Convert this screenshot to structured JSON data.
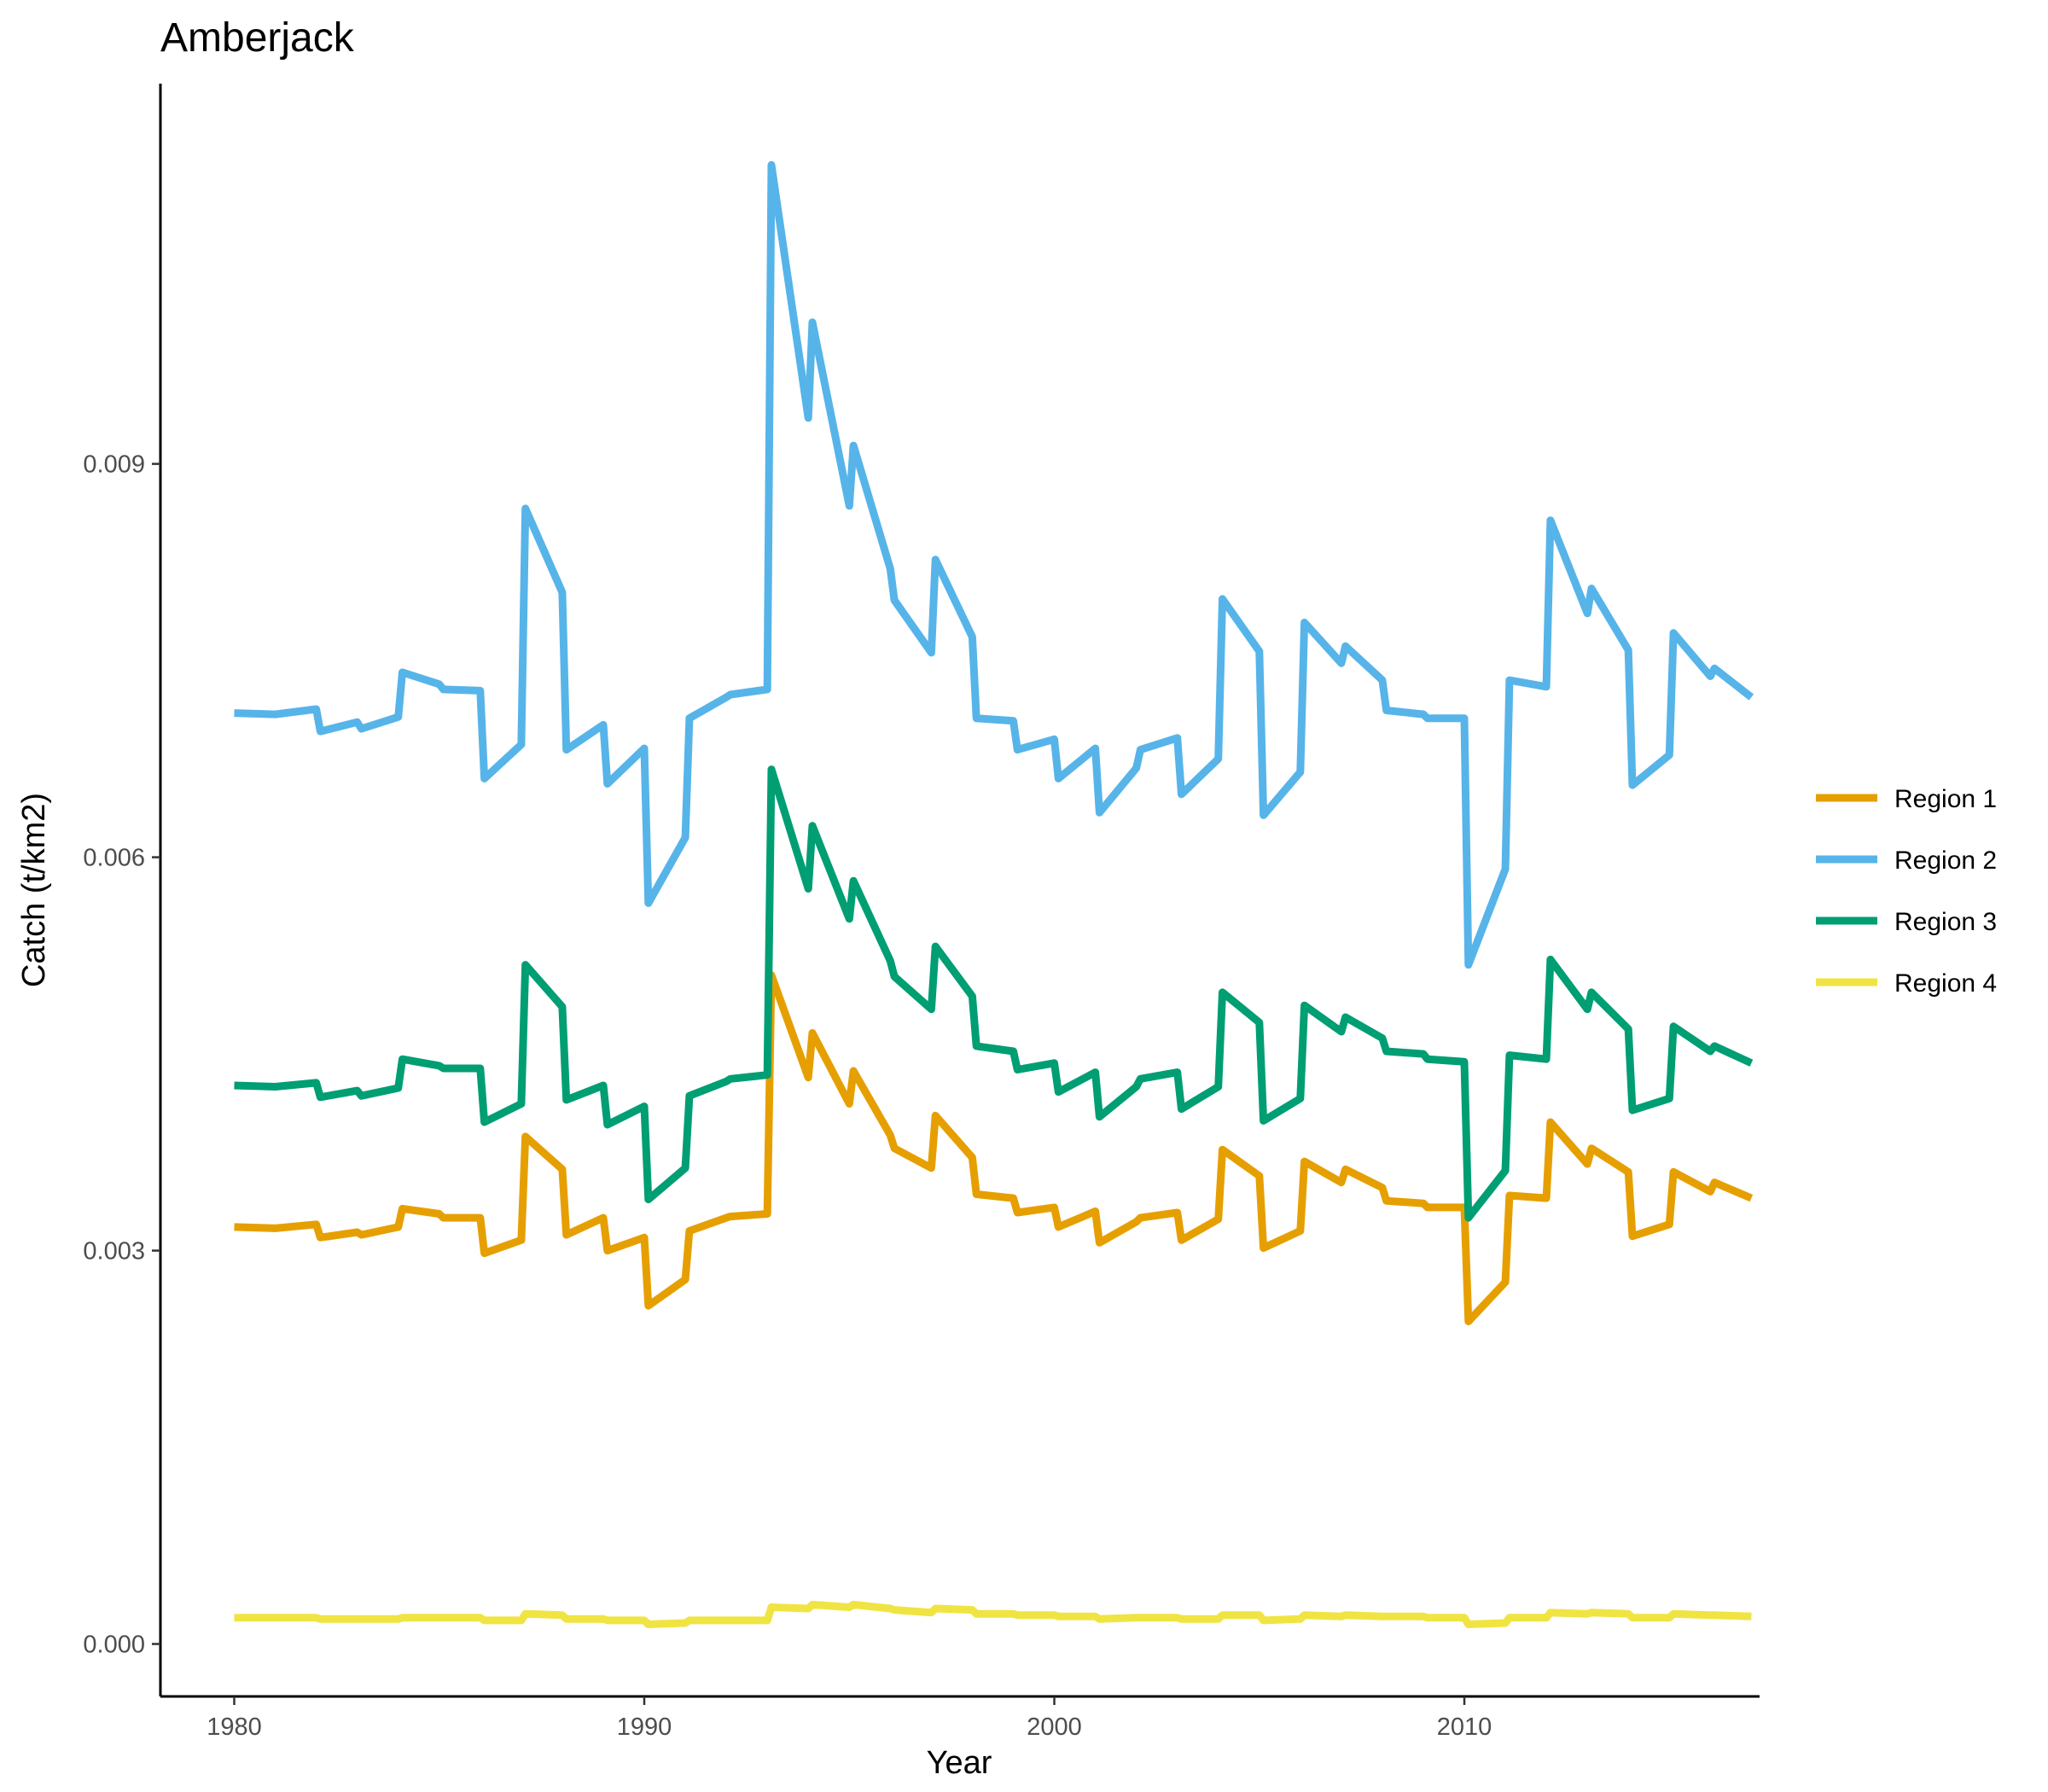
{
  "chart_data": {
    "type": "line",
    "title": "Amberjack",
    "xlabel": "Year",
    "ylabel": "Catch (t/km2)",
    "xlim": [
      1978.2,
      2017.2
    ],
    "ylim": [
      -0.0004,
      0.0119
    ],
    "x_ticks": [
      1980,
      1990,
      2000,
      2010
    ],
    "x_tick_labels": [
      "1980",
      "1990",
      "2000",
      "2010"
    ],
    "y_ticks": [
      0.0,
      0.003,
      0.006,
      0.009
    ],
    "y_tick_labels": [
      "0.000",
      "0.003",
      "0.006",
      "0.009"
    ],
    "grid": false,
    "legend_position": "right",
    "series": [
      {
        "name": "Region 1",
        "color": "#E69F00",
        "x": [
          1980.0,
          1981.0,
          1982.0,
          1982.1,
          1983.0,
          1983.1,
          1984.0,
          1984.1,
          1985.0,
          1985.1,
          1986.0,
          1986.1,
          1987.0,
          1987.1,
          1988.0,
          1988.1,
          1989.0,
          1989.1,
          1990.0,
          1990.1,
          1991.0,
          1991.1,
          1992.0,
          1992.1,
          1993.0,
          1993.1,
          1994.0,
          1994.1,
          1995.0,
          1995.1,
          1996.0,
          1996.1,
          1997.0,
          1997.1,
          1998.0,
          1998.1,
          1999.0,
          1999.1,
          2000.0,
          2000.1,
          2001.0,
          2001.1,
          2002.0,
          2002.1,
          2003.0,
          2003.1,
          2004.0,
          2004.1,
          2005.0,
          2005.1,
          2006.0,
          2006.1,
          2007.0,
          2007.1,
          2008.0,
          2008.1,
          2009.0,
          2009.1,
          2010.0,
          2010.1,
          2011.0,
          2011.1,
          2012.0,
          2012.1,
          2013.0,
          2013.1,
          2014.0,
          2014.1,
          2015.0,
          2015.1,
          2016.0,
          2016.1,
          2017.0
        ],
        "y": [
          0.00318,
          0.00317,
          0.0032,
          0.0031,
          0.00314,
          0.00312,
          0.00318,
          0.00332,
          0.00328,
          0.00325,
          0.00325,
          0.00298,
          0.00308,
          0.00387,
          0.00362,
          0.00312,
          0.00325,
          0.003,
          0.0031,
          0.00258,
          0.00278,
          0.00315,
          0.00325,
          0.00326,
          0.00328,
          0.0051,
          0.00432,
          0.00466,
          0.00412,
          0.00437,
          0.00388,
          0.00378,
          0.00363,
          0.00403,
          0.00371,
          0.00343,
          0.0034,
          0.00329,
          0.00333,
          0.00318,
          0.0033,
          0.00306,
          0.00322,
          0.00325,
          0.00329,
          0.00308,
          0.00324,
          0.00377,
          0.00357,
          0.00302,
          0.00315,
          0.00368,
          0.00352,
          0.00362,
          0.00348,
          0.00338,
          0.00336,
          0.00333,
          0.00333,
          0.00246,
          0.00276,
          0.00342,
          0.0034,
          0.00398,
          0.00366,
          0.00378,
          0.0036,
          0.00311,
          0.0032,
          0.0036,
          0.00345,
          0.00352,
          0.0034
        ]
      },
      {
        "name": "Region 2",
        "color": "#56B4E9",
        "x": [
          1980.0,
          1981.0,
          1982.0,
          1982.1,
          1983.0,
          1983.1,
          1984.0,
          1984.1,
          1985.0,
          1985.1,
          1986.0,
          1986.1,
          1987.0,
          1987.1,
          1988.0,
          1988.1,
          1989.0,
          1989.1,
          1990.0,
          1990.1,
          1991.0,
          1991.1,
          1992.0,
          1992.1,
          1993.0,
          1993.1,
          1994.0,
          1994.1,
          1995.0,
          1995.1,
          1996.0,
          1996.1,
          1997.0,
          1997.1,
          1998.0,
          1998.1,
          1999.0,
          1999.1,
          2000.0,
          2000.1,
          2001.0,
          2001.1,
          2002.0,
          2002.1,
          2003.0,
          2003.1,
          2004.0,
          2004.1,
          2005.0,
          2005.1,
          2006.0,
          2006.1,
          2007.0,
          2007.1,
          2008.0,
          2008.1,
          2009.0,
          2009.1,
          2010.0,
          2010.1,
          2011.0,
          2011.1,
          2012.0,
          2012.1,
          2013.0,
          2013.1,
          2014.0,
          2014.1,
          2015.0,
          2015.1,
          2016.0,
          2016.1,
          2017.0
        ],
        "y": [
          0.0071,
          0.00709,
          0.00713,
          0.00696,
          0.00703,
          0.00698,
          0.00707,
          0.00741,
          0.00732,
          0.00728,
          0.00727,
          0.0066,
          0.00686,
          0.00866,
          0.00802,
          0.00682,
          0.00701,
          0.00656,
          0.00683,
          0.00565,
          0.00615,
          0.00706,
          0.00722,
          0.00724,
          0.00728,
          0.01128,
          0.00935,
          0.01008,
          0.00868,
          0.00914,
          0.0082,
          0.00796,
          0.00756,
          0.00827,
          0.00768,
          0.00706,
          0.00704,
          0.00682,
          0.0069,
          0.0066,
          0.00683,
          0.00634,
          0.00668,
          0.00682,
          0.00691,
          0.00648,
          0.00675,
          0.00797,
          0.00757,
          0.00632,
          0.00665,
          0.00779,
          0.00748,
          0.00761,
          0.00735,
          0.00712,
          0.00709,
          0.00706,
          0.00706,
          0.00518,
          0.00591,
          0.00735,
          0.0073,
          0.00857,
          0.00786,
          0.00805,
          0.00758,
          0.00655,
          0.00678,
          0.00771,
          0.00738,
          0.00744,
          0.00722
        ]
      },
      {
        "name": "Region 3",
        "color": "#009E73",
        "x": [
          1980.0,
          1981.0,
          1982.0,
          1982.1,
          1983.0,
          1983.1,
          1984.0,
          1984.1,
          1985.0,
          1985.1,
          1986.0,
          1986.1,
          1987.0,
          1987.1,
          1988.0,
          1988.1,
          1989.0,
          1989.1,
          1990.0,
          1990.1,
          1991.0,
          1991.1,
          1992.0,
          1992.1,
          1993.0,
          1993.1,
          1994.0,
          1994.1,
          1995.0,
          1995.1,
          1996.0,
          1996.1,
          1997.0,
          1997.1,
          1998.0,
          1998.1,
          1999.0,
          1999.1,
          2000.0,
          2000.1,
          2001.0,
          2001.1,
          2002.0,
          2002.1,
          2003.0,
          2003.1,
          2004.0,
          2004.1,
          2005.0,
          2005.1,
          2006.0,
          2006.1,
          2007.0,
          2007.1,
          2008.0,
          2008.1,
          2009.0,
          2009.1,
          2010.0,
          2010.1,
          2011.0,
          2011.1,
          2012.0,
          2012.1,
          2013.0,
          2013.1,
          2014.0,
          2014.1,
          2015.0,
          2015.1,
          2016.0,
          2016.1,
          2017.0
        ],
        "y": [
          0.00426,
          0.00425,
          0.00428,
          0.00417,
          0.00422,
          0.00418,
          0.00424,
          0.00446,
          0.00441,
          0.00439,
          0.00439,
          0.00398,
          0.00412,
          0.00518,
          0.00486,
          0.00415,
          0.00426,
          0.00396,
          0.0041,
          0.00339,
          0.00363,
          0.00418,
          0.00429,
          0.00431,
          0.00434,
          0.00667,
          0.00576,
          0.00624,
          0.00553,
          0.00582,
          0.00521,
          0.00509,
          0.00484,
          0.00532,
          0.00494,
          0.00456,
          0.00452,
          0.00438,
          0.00443,
          0.00421,
          0.00436,
          0.00402,
          0.00425,
          0.00431,
          0.00436,
          0.00408,
          0.00425,
          0.00497,
          0.00474,
          0.00399,
          0.00416,
          0.00487,
          0.00467,
          0.00478,
          0.00462,
          0.00452,
          0.0045,
          0.00446,
          0.00444,
          0.00325,
          0.00361,
          0.00449,
          0.00446,
          0.00522,
          0.00484,
          0.00497,
          0.00469,
          0.00407,
          0.00416,
          0.00471,
          0.00452,
          0.00456,
          0.00443
        ]
      },
      {
        "name": "Region 4",
        "color": "#F0E442",
        "x": [
          1980.0,
          1981.0,
          1982.0,
          1982.1,
          1983.0,
          1983.1,
          1984.0,
          1984.1,
          1985.0,
          1985.1,
          1986.0,
          1986.1,
          1987.0,
          1987.1,
          1988.0,
          1988.1,
          1989.0,
          1989.1,
          1990.0,
          1990.1,
          1991.0,
          1991.1,
          1992.0,
          1992.1,
          1993.0,
          1993.1,
          1994.0,
          1994.1,
          1995.0,
          1995.1,
          1996.0,
          1996.1,
          1997.0,
          1997.1,
          1998.0,
          1998.1,
          1999.0,
          1999.1,
          2000.0,
          2000.1,
          2001.0,
          2001.1,
          2002.0,
          2002.1,
          2003.0,
          2003.1,
          2004.0,
          2004.1,
          2005.0,
          2005.1,
          2006.0,
          2006.1,
          2007.0,
          2007.1,
          2008.0,
          2008.1,
          2009.0,
          2009.1,
          2010.0,
          2010.1,
          2011.0,
          2011.1,
          2012.0,
          2012.1,
          2013.0,
          2013.1,
          2014.0,
          2014.1,
          2015.0,
          2015.1,
          2016.0,
          2016.1,
          2017.0
        ],
        "y": [
          0.0002,
          0.0002,
          0.0002,
          0.00019,
          0.00019,
          0.00019,
          0.00019,
          0.0002,
          0.0002,
          0.0002,
          0.0002,
          0.00018,
          0.00018,
          0.00023,
          0.00022,
          0.00019,
          0.00019,
          0.00018,
          0.00018,
          0.00015,
          0.00016,
          0.00018,
          0.00018,
          0.00018,
          0.00018,
          0.00028,
          0.00027,
          0.0003,
          0.00028,
          0.0003,
          0.00027,
          0.00026,
          0.00024,
          0.00027,
          0.00026,
          0.00023,
          0.00023,
          0.00022,
          0.00022,
          0.00021,
          0.00021,
          0.00019,
          0.0002,
          0.0002,
          0.0002,
          0.00019,
          0.00019,
          0.00022,
          0.00022,
          0.00018,
          0.00019,
          0.00022,
          0.00021,
          0.00022,
          0.00021,
          0.00021,
          0.00021,
          0.0002,
          0.0002,
          0.00015,
          0.00016,
          0.0002,
          0.0002,
          0.00024,
          0.00023,
          0.00024,
          0.00023,
          0.0002,
          0.0002,
          0.00023,
          0.00022,
          0.00022,
          0.00021
        ]
      }
    ]
  }
}
